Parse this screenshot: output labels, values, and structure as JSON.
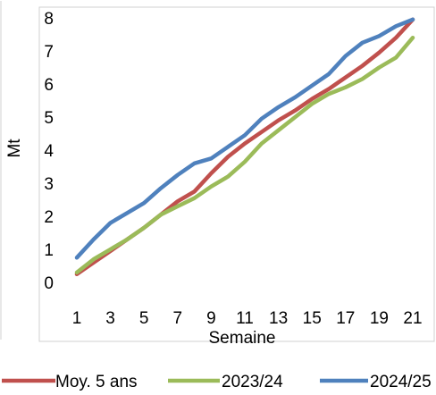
{
  "chart_data": {
    "type": "line",
    "title": "",
    "xlabel": "Semaine",
    "ylabel": "Mt",
    "x": [
      1,
      2,
      3,
      4,
      5,
      6,
      7,
      8,
      9,
      10,
      11,
      12,
      13,
      14,
      15,
      16,
      17,
      18,
      19,
      20,
      21
    ],
    "x_tick_labels": [
      "1",
      "3",
      "5",
      "7",
      "9",
      "11",
      "13",
      "15",
      "17",
      "19",
      "21"
    ],
    "x_tick_values": [
      1,
      3,
      5,
      7,
      9,
      11,
      13,
      15,
      17,
      19,
      21
    ],
    "y_tick_labels": [
      "0",
      "1",
      "2",
      "3",
      "4",
      "5",
      "6",
      "7",
      "8"
    ],
    "xlim": [
      1,
      21
    ],
    "ylim": [
      0,
      8
    ],
    "grid": false,
    "legend_position": "bottom",
    "series": [
      {
        "name": "Moy. 5 ans",
        "color": "#C0504D",
        "values": [
          0.25,
          0.6,
          0.95,
          1.3,
          1.65,
          2.05,
          2.45,
          2.75,
          3.3,
          3.8,
          4.2,
          4.55,
          4.9,
          5.2,
          5.55,
          5.85,
          6.2,
          6.55,
          6.95,
          7.4,
          7.95
        ]
      },
      {
        "name": "2023/24",
        "color": "#9BBB59",
        "values": [
          0.3,
          0.7,
          1.0,
          1.3,
          1.65,
          2.05,
          2.3,
          2.55,
          2.9,
          3.2,
          3.65,
          4.2,
          4.6,
          5.0,
          5.4,
          5.7,
          5.9,
          6.15,
          6.5,
          6.8,
          7.4
        ]
      },
      {
        "name": "2024/25",
        "color": "#4F81BD",
        "values": [
          0.75,
          1.3,
          1.8,
          2.1,
          2.4,
          2.85,
          3.25,
          3.6,
          3.75,
          4.1,
          4.45,
          4.95,
          5.3,
          5.6,
          5.95,
          6.3,
          6.85,
          7.25,
          7.45,
          7.75,
          7.95
        ]
      }
    ]
  }
}
